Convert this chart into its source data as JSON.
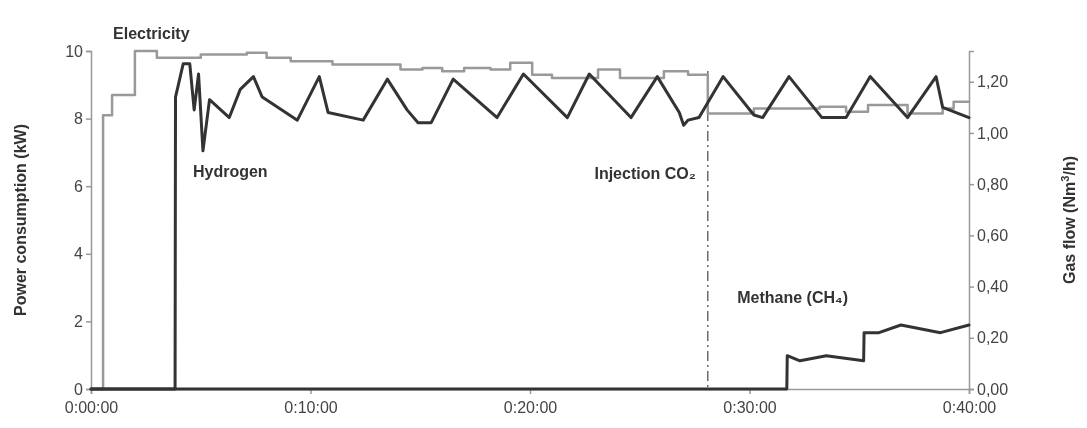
{
  "chart_data": {
    "type": "line",
    "xlim": [
      0,
      40
    ],
    "xticks": [
      {
        "value": 0,
        "label": "0:00:00"
      },
      {
        "value": 10,
        "label": "0:10:00"
      },
      {
        "value": 20,
        "label": "0:20:00"
      },
      {
        "value": 30,
        "label": "0:30:00"
      },
      {
        "value": 40,
        "label": "0:40:00"
      }
    ],
    "ylabel": "Power consumption (kW)",
    "ylim": [
      0,
      10
    ],
    "yticks": [
      0,
      2,
      4,
      6,
      8,
      10
    ],
    "y2label": "Gas flow (Nm$^{3}$/h)",
    "y2lim": [
      0,
      1.32
    ],
    "y2ticks": [
      {
        "value": 0,
        "label": "0,00"
      },
      {
        "value": 0.2,
        "label": "0,20"
      },
      {
        "value": 0.4,
        "label": "0,40"
      },
      {
        "value": 0.6,
        "label": "0,60"
      },
      {
        "value": 0.8,
        "label": "0,80"
      },
      {
        "value": 1.0,
        "label": "1,00"
      },
      {
        "value": 1.2,
        "label": "1,20"
      }
    ],
    "grid": false,
    "ref_lines": [
      {
        "axis": "x",
        "value": 28.1,
        "label": "Injection CO₂",
        "color": "#555555",
        "line_style": "dashdot"
      }
    ],
    "series": [
      {
        "name": "Electricity",
        "type": "step",
        "color": "#999999",
        "x": [
          0,
          0.55,
          0.96,
          2.0,
          3.0,
          5.0,
          7.1,
          8.0,
          9.1,
          11.0,
          14.1,
          15.1,
          16.0,
          17.0,
          18.2,
          19.1,
          20.1,
          21.0,
          23.1,
          24.1,
          26.1,
          27.2,
          28.1,
          30.2,
          31.1,
          33.2,
          34.4,
          35.4,
          37.2,
          38.8,
          39.3,
          40
        ],
        "values": [
          0,
          8.1,
          8.7,
          10.0,
          9.8,
          9.9,
          9.95,
          9.8,
          9.7,
          9.6,
          9.45,
          9.5,
          9.4,
          9.5,
          9.45,
          9.65,
          9.3,
          9.2,
          9.45,
          9.2,
          9.4,
          9.3,
          8.15,
          8.3,
          8.3,
          8.35,
          8.2,
          8.4,
          8.15,
          8.3,
          8.5,
          8.5
        ]
      },
      {
        "name": "Hydrogen",
        "axis": "y2",
        "color": "#333333",
        "x": [
          0,
          3.83,
          3.85,
          4.2,
          4.5,
          4.7,
          4.9,
          5.1,
          5.4,
          6.3,
          6.8,
          7.4,
          7.8,
          9.4,
          10.4,
          10.8,
          12.4,
          13.5,
          14.4,
          14.9,
          15.5,
          16.5,
          18.5,
          19.7,
          21.7,
          22.7,
          24.6,
          25.8,
          26.8,
          27.0,
          27.2,
          27.7,
          28.8,
          30.2,
          30.6,
          31.8,
          33.3,
          34.4,
          35.5,
          37.2,
          38.5,
          38.8,
          40.0
        ],
        "values": [
          0,
          0,
          1.14,
          1.27,
          1.27,
          1.09,
          1.23,
          0.93,
          1.13,
          1.06,
          1.17,
          1.22,
          1.14,
          1.05,
          1.22,
          1.08,
          1.05,
          1.21,
          1.09,
          1.04,
          1.04,
          1.21,
          1.06,
          1.23,
          1.06,
          1.23,
          1.06,
          1.22,
          1.08,
          1.03,
          1.05,
          1.06,
          1.22,
          1.07,
          1.06,
          1.22,
          1.06,
          1.06,
          1.22,
          1.06,
          1.22,
          1.1,
          1.06
        ]
      },
      {
        "name": "Methane (CH₄)",
        "axis": "y2",
        "color": "#333333",
        "x": [
          0,
          31.7,
          31.72,
          32.3,
          33.5,
          35.2,
          35.22,
          35.9,
          36.9,
          38.7,
          40.0
        ],
        "values": [
          0,
          0,
          0.13,
          0.11,
          0.13,
          0.11,
          0.22,
          0.22,
          0.25,
          0.22,
          0.25
        ]
      }
    ]
  }
}
